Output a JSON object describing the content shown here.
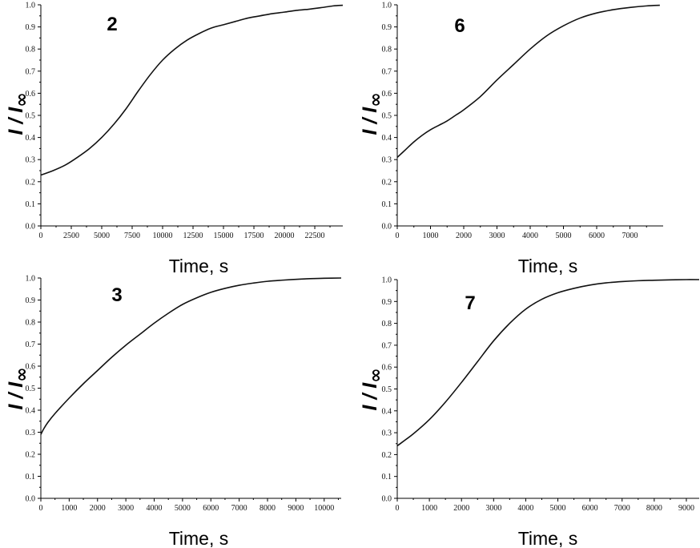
{
  "chart_data": [
    {
      "type": "line",
      "panel_label": "2",
      "xlabel": "Time, s",
      "ylabel": "I / I",
      "ylabel_subscript": "∞",
      "xlim": [
        0,
        24800
      ],
      "ylim": [
        0,
        1.0
      ],
      "x_ticks": [
        0,
        2500,
        5000,
        7500,
        10000,
        12500,
        15000,
        17500,
        20000,
        22500
      ],
      "y_ticks": [
        0.0,
        0.1,
        0.2,
        0.3,
        0.4,
        0.5,
        0.6,
        0.7,
        0.8,
        0.9,
        1.0
      ],
      "grid": false,
      "series": [
        {
          "x": [
            0,
            1000,
            2000,
            3000,
            4000,
            5000,
            6000,
            7000,
            8000,
            9000,
            10000,
            11000,
            12000,
            13000,
            14000,
            15000,
            16000,
            17000,
            18000,
            19000,
            20000,
            21000,
            22000,
            23000,
            24000,
            24800
          ],
          "y": [
            0.23,
            0.25,
            0.275,
            0.31,
            0.35,
            0.4,
            0.46,
            0.53,
            0.61,
            0.685,
            0.75,
            0.8,
            0.84,
            0.87,
            0.895,
            0.91,
            0.925,
            0.94,
            0.95,
            0.96,
            0.967,
            0.975,
            0.98,
            0.987,
            0.995,
            0.998
          ]
        }
      ]
    },
    {
      "type": "line",
      "panel_label": "6",
      "xlabel": "Time, s",
      "ylabel": "I / I",
      "ylabel_subscript": "∞",
      "xlim": [
        0,
        8000
      ],
      "ylim": [
        0,
        1.0
      ],
      "x_ticks": [
        0,
        1000,
        2000,
        3000,
        4000,
        5000,
        6000,
        7000
      ],
      "y_ticks": [
        0.0,
        0.1,
        0.2,
        0.3,
        0.4,
        0.5,
        0.6,
        0.7,
        0.8,
        0.9,
        1.0
      ],
      "grid": false,
      "series": [
        {
          "x": [
            0,
            250,
            500,
            750,
            1000,
            1250,
            1500,
            1750,
            2000,
            2500,
            3000,
            3500,
            4000,
            4500,
            5000,
            5500,
            6000,
            6500,
            7000,
            7500,
            7900
          ],
          "y": [
            0.31,
            0.345,
            0.38,
            0.41,
            0.435,
            0.455,
            0.475,
            0.5,
            0.525,
            0.585,
            0.66,
            0.73,
            0.8,
            0.86,
            0.905,
            0.94,
            0.963,
            0.978,
            0.988,
            0.995,
            0.998
          ]
        }
      ]
    },
    {
      "type": "line",
      "panel_label": "3",
      "xlabel": "Time, s",
      "ylabel": "I / I",
      "ylabel_subscript": "∞",
      "xlim": [
        0,
        10600
      ],
      "ylim": [
        0,
        1.0
      ],
      "x_ticks": [
        0,
        1000,
        2000,
        3000,
        4000,
        5000,
        6000,
        7000,
        8000,
        9000,
        10000
      ],
      "y_ticks": [
        0.0,
        0.1,
        0.2,
        0.3,
        0.4,
        0.5,
        0.6,
        0.7,
        0.8,
        0.9,
        1.0
      ],
      "grid": false,
      "series": [
        {
          "x": [
            0,
            100,
            250,
            500,
            1000,
            1500,
            2000,
            2500,
            3000,
            3500,
            4000,
            4500,
            5000,
            5500,
            6000,
            6500,
            7000,
            7500,
            8000,
            8500,
            9000,
            9500,
            10000,
            10600
          ],
          "y": [
            0.29,
            0.315,
            0.345,
            0.385,
            0.455,
            0.52,
            0.58,
            0.64,
            0.695,
            0.745,
            0.795,
            0.84,
            0.88,
            0.91,
            0.935,
            0.953,
            0.967,
            0.977,
            0.985,
            0.99,
            0.994,
            0.997,
            0.999,
            1.0
          ]
        }
      ]
    },
    {
      "type": "line",
      "panel_label": "7",
      "xlabel": "Time, s",
      "ylabel": "I / I",
      "ylabel_subscript": "∞",
      "xlim": [
        0,
        9400
      ],
      "ylim": [
        0,
        1.0
      ],
      "x_ticks": [
        0,
        1000,
        2000,
        3000,
        4000,
        5000,
        6000,
        7000,
        8000,
        9000
      ],
      "y_ticks": [
        0.0,
        0.1,
        0.2,
        0.3,
        0.4,
        0.5,
        0.6,
        0.7,
        0.8,
        0.9,
        1.0
      ],
      "grid": false,
      "series": [
        {
          "x": [
            0,
            500,
            1000,
            1500,
            2000,
            2500,
            3000,
            3500,
            4000,
            4500,
            5000,
            5500,
            6000,
            6500,
            7000,
            7500,
            8000,
            8500,
            9000,
            9400
          ],
          "y": [
            0.24,
            0.295,
            0.36,
            0.44,
            0.53,
            0.625,
            0.72,
            0.8,
            0.865,
            0.91,
            0.94,
            0.96,
            0.975,
            0.985,
            0.991,
            0.995,
            0.997,
            0.999,
            1.0,
            1.0
          ]
        }
      ]
    }
  ]
}
